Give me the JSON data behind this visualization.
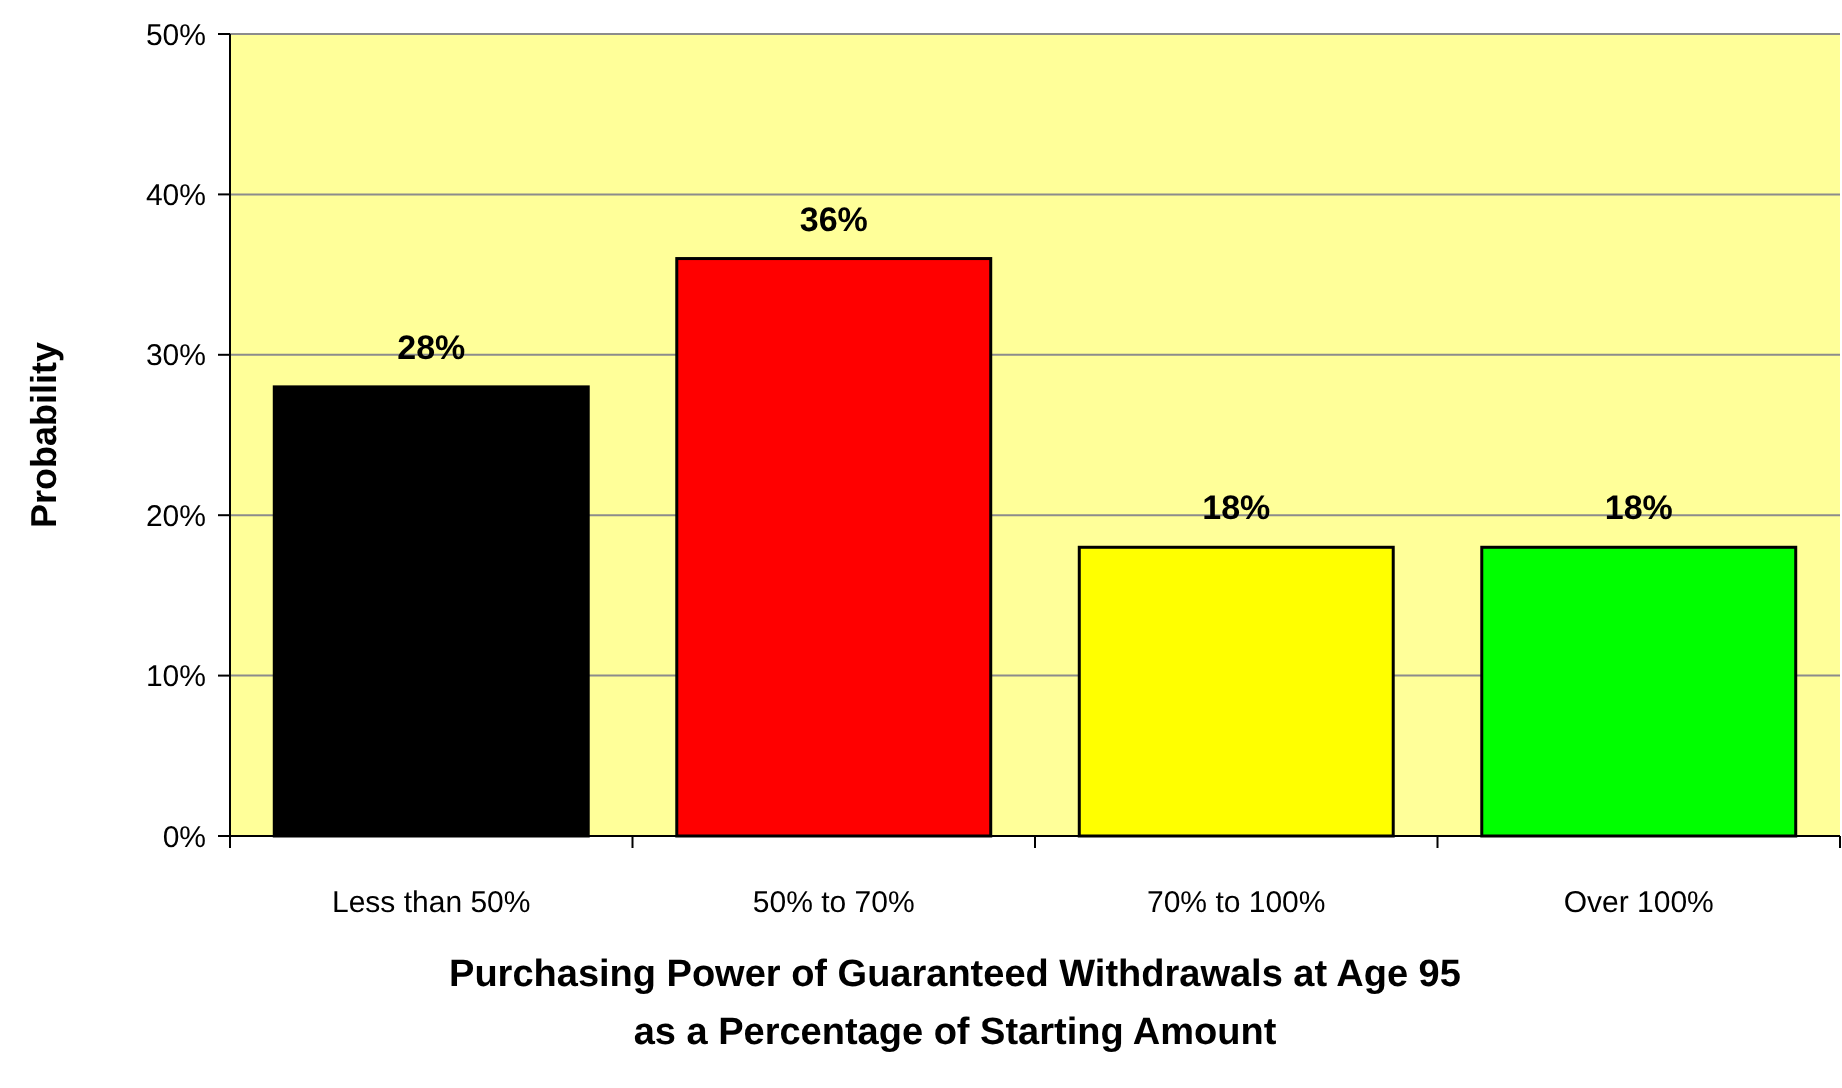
{
  "chart_data": {
    "type": "bar",
    "xlabel": "Purchasing Power of Guaranteed Withdrawals at Age 95\nas a Percentage of Starting Amount",
    "ylabel": "Probability",
    "categories": [
      "Less than 50%",
      "50% to 70%",
      "70% to 100%",
      "Over 100%"
    ],
    "values": [
      28,
      36,
      18,
      18
    ],
    "colors": [
      "#000000",
      "#ff0000",
      "#ffff00",
      "#00ff00"
    ],
    "value_labels": [
      "28%",
      "36%",
      "18%",
      "18%"
    ],
    "ylim": [
      0,
      50
    ],
    "yticks": [
      {
        "value": 0,
        "label": "0%"
      },
      {
        "value": 10,
        "label": "10%"
      },
      {
        "value": 20,
        "label": "20%"
      },
      {
        "value": 30,
        "label": "30%"
      },
      {
        "value": 40,
        "label": "40%"
      },
      {
        "value": 50,
        "label": "50%"
      }
    ],
    "grid": "y"
  }
}
